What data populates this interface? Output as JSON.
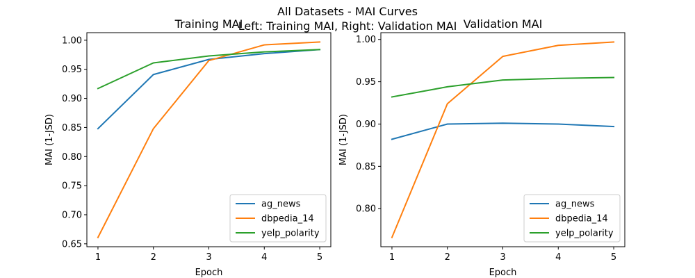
{
  "figure": {
    "suptitle_line1": "All Datasets - MAI Curves",
    "suptitle_line2": "Left: Training MAI, Right: Validation MAI"
  },
  "chart_data": [
    {
      "type": "line",
      "title": "Training MAI",
      "xlabel": "Epoch",
      "ylabel": "MAI (1-JSD)",
      "x": [
        1,
        2,
        3,
        4,
        5
      ],
      "xticks": [
        "1",
        "2",
        "3",
        "4",
        "5"
      ],
      "xlim": [
        0.8,
        5.2
      ],
      "ylim": [
        0.645,
        1.013
      ],
      "yticks": [
        0.65,
        0.7,
        0.75,
        0.8,
        0.85,
        0.9,
        0.95,
        1.0
      ],
      "ytick_labels": [
        "0.65",
        "0.70",
        "0.75",
        "0.80",
        "0.85",
        "0.90",
        "0.95",
        "1.00"
      ],
      "legend": "bottom-right",
      "grid": false,
      "series": [
        {
          "name": "ag_news",
          "color": "#1f77b4",
          "values": [
            0.848,
            0.941,
            0.967,
            0.977,
            0.984
          ]
        },
        {
          "name": "dbpedia_14",
          "color": "#ff7f0e",
          "values": [
            0.661,
            0.848,
            0.965,
            0.992,
            0.997
          ]
        },
        {
          "name": "yelp_polarity",
          "color": "#2ca02c",
          "values": [
            0.917,
            0.961,
            0.973,
            0.98,
            0.984
          ]
        }
      ]
    },
    {
      "type": "line",
      "title": "Validation MAI",
      "xlabel": "Epoch",
      "ylabel": "MAI (1-JSD)",
      "x": [
        1,
        2,
        3,
        4,
        5
      ],
      "xticks": [
        "1",
        "2",
        "3",
        "4",
        "5"
      ],
      "xlim": [
        0.8,
        5.2
      ],
      "ylim": [
        0.755,
        1.008
      ],
      "yticks": [
        0.8,
        0.85,
        0.9,
        0.95,
        1.0
      ],
      "ytick_labels": [
        "0.80",
        "0.85",
        "0.90",
        "0.95",
        "1.00"
      ],
      "legend": "bottom-right",
      "grid": false,
      "series": [
        {
          "name": "ag_news",
          "color": "#1f77b4",
          "values": [
            0.882,
            0.9,
            0.901,
            0.9,
            0.897
          ]
        },
        {
          "name": "dbpedia_14",
          "color": "#ff7f0e",
          "values": [
            0.766,
            0.924,
            0.98,
            0.993,
            0.997
          ]
        },
        {
          "name": "yelp_polarity",
          "color": "#2ca02c",
          "values": [
            0.932,
            0.944,
            0.952,
            0.954,
            0.955
          ]
        }
      ]
    }
  ]
}
